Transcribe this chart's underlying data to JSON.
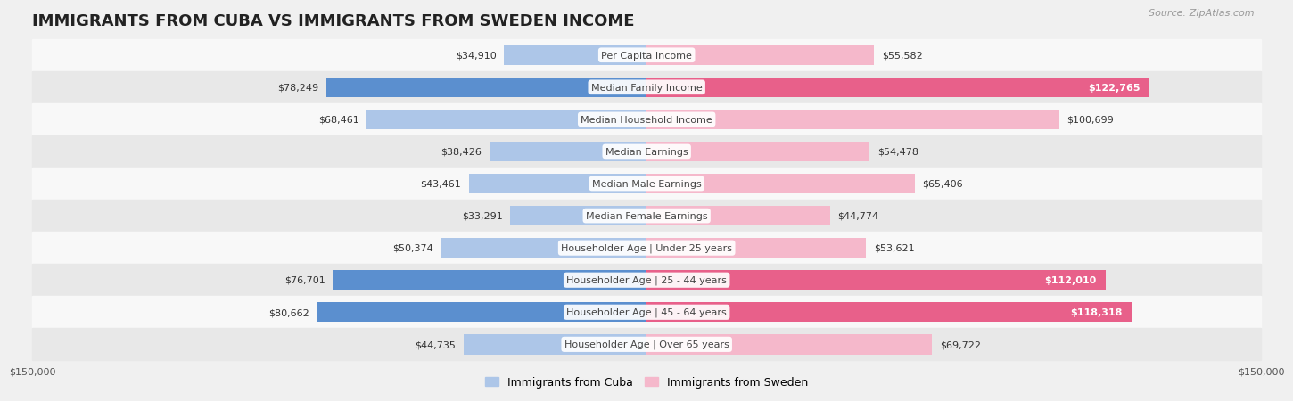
{
  "title": "IMMIGRANTS FROM CUBA VS IMMIGRANTS FROM SWEDEN INCOME",
  "source": "Source: ZipAtlas.com",
  "categories": [
    "Per Capita Income",
    "Median Family Income",
    "Median Household Income",
    "Median Earnings",
    "Median Male Earnings",
    "Median Female Earnings",
    "Householder Age | Under 25 years",
    "Householder Age | 25 - 44 years",
    "Householder Age | 45 - 64 years",
    "Householder Age | Over 65 years"
  ],
  "cuba_values": [
    34910,
    78249,
    68461,
    38426,
    43461,
    33291,
    50374,
    76701,
    80662,
    44735
  ],
  "sweden_values": [
    55582,
    122765,
    100699,
    54478,
    65406,
    44774,
    53621,
    112010,
    118318,
    69722
  ],
  "cuba_color_light": "#adc6e8",
  "cuba_color_dark": "#5b8fcf",
  "sweden_color_light": "#f5b8cb",
  "sweden_color_dark": "#e8608a",
  "bar_height": 0.62,
  "max_value": 150000,
  "background_color": "#f0f0f0",
  "row_bg_odd": "#f8f8f8",
  "row_bg_even": "#e8e8e8",
  "xlabel_left": "$150,000",
  "xlabel_right": "$150,000",
  "legend_cuba": "Immigrants from Cuba",
  "legend_sweden": "Immigrants from Sweden",
  "title_fontsize": 13,
  "source_fontsize": 8,
  "value_fontsize": 8,
  "category_fontsize": 8,
  "legend_fontsize": 9,
  "axis_fontsize": 8,
  "sweden_inside_threshold": 0.72,
  "cuba_inside_threshold": 0.5
}
